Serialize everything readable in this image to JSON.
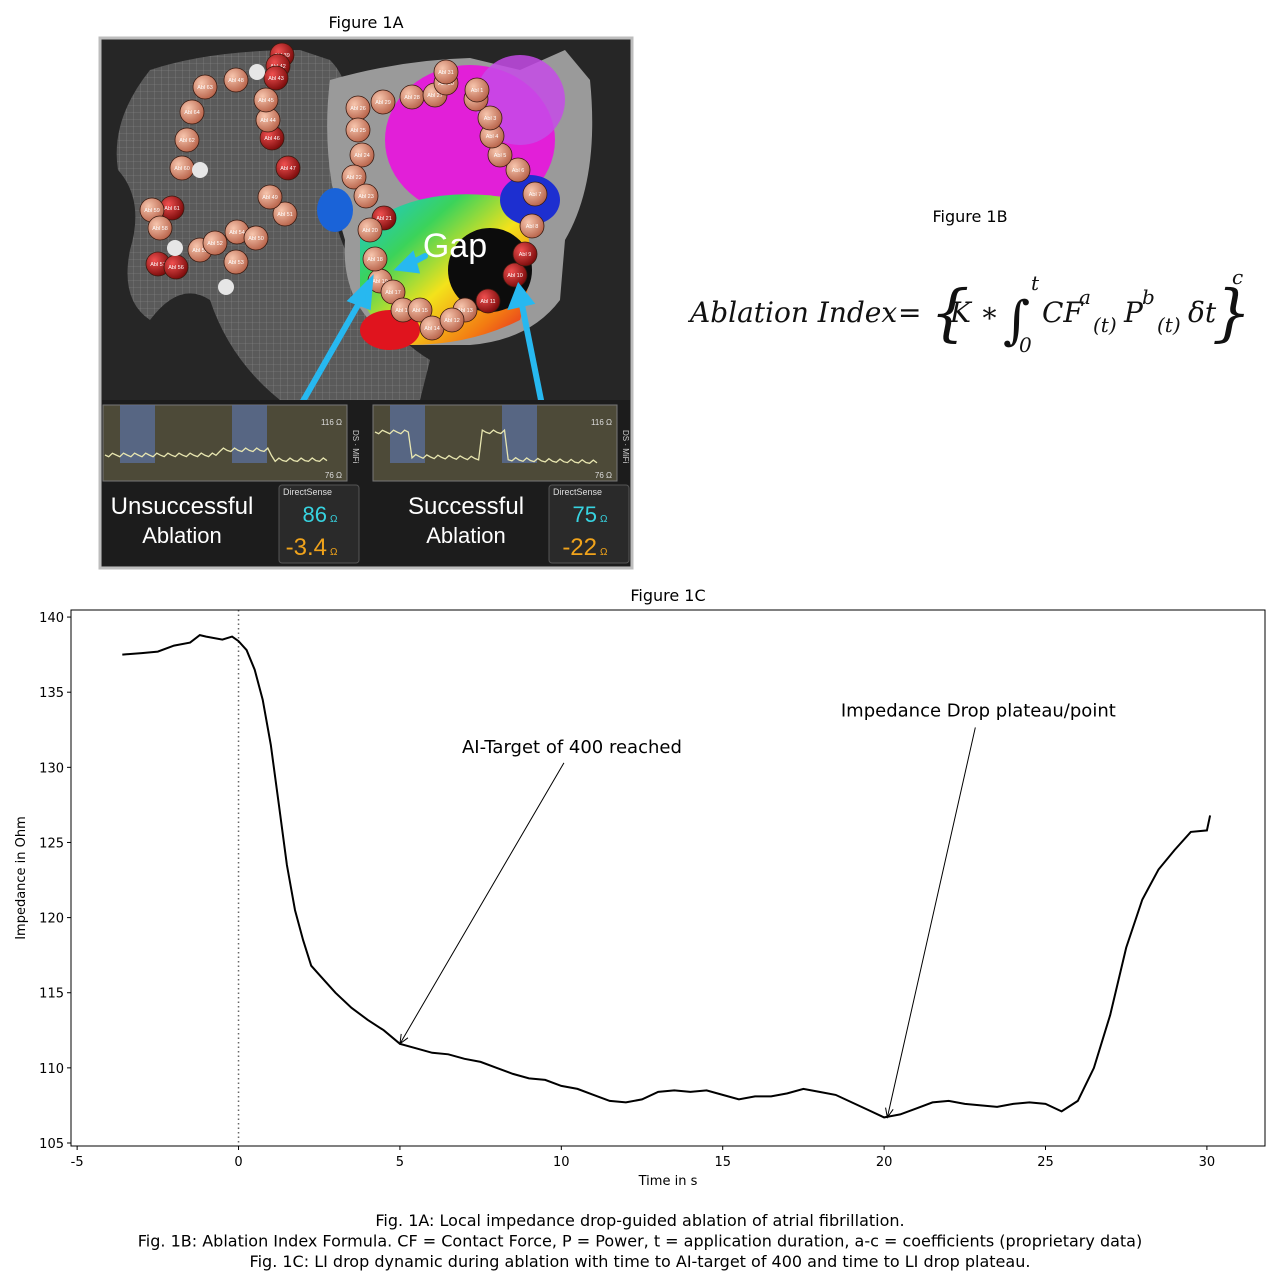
{
  "figure_1a": {
    "title": "Figure 1A",
    "gap_label": "Gap",
    "side_label": "DS · MiFi",
    "sphere_labels": [
      "Abl 39",
      "Abl 42",
      "Abl 43",
      "Abl 48",
      "Abl 63",
      "Abl 64",
      "Abl 62",
      "Abl 60",
      "Abl 61",
      "Abl 59",
      "Abl 58",
      "Abl 57",
      "Abl 56",
      "Abl 55",
      "Abl 54",
      "Abl 53",
      "Abl 52",
      "Abl 50",
      "Abl 51",
      "Abl 49",
      "Abl 47",
      "Abl 46",
      "Abl 44",
      "Abl 45",
      "Abl 29",
      "Abl 28",
      "Abl 27",
      "Abl 26",
      "Abl 25",
      "Abl 24",
      "Abl 22",
      "Abl 23",
      "Abl 21",
      "Abl 20",
      "Abl 19",
      "Abl 18",
      "Abl 17",
      "Abl 16",
      "Abl 15",
      "Abl 14",
      "Abl 13",
      "Abl 12",
      "Abl 11",
      "Abl 10",
      "Abl 9",
      "Abl 8",
      "Abl 7",
      "Abl 6",
      "Abl 5",
      "Abl 4",
      "Abl 3",
      "Abl 2",
      "Abl 1",
      "Abl 30",
      "Abl 31"
    ],
    "panels": [
      {
        "status": [
          "Unsuccessful",
          "Ablation"
        ],
        "brand": "DirectSense",
        "value": "86",
        "value_unit": "Ω",
        "drop": "-3.4",
        "drop_unit": "Ω",
        "scale_top": "116 Ω",
        "scale_bottom": "76 Ω"
      },
      {
        "status": [
          "Successful",
          "Ablation"
        ],
        "brand": "DirectSense",
        "value": "75",
        "value_unit": "Ω",
        "drop": "-22",
        "drop_unit": "Ω",
        "scale_top": "116 Ω",
        "scale_bottom": "76 Ω"
      }
    ]
  },
  "figure_1b": {
    "title": "Figure 1B",
    "formula": {
      "lhs": "Ablation Index",
      "eq": "=",
      "open": "{",
      "k": "K ∗",
      "integral": "∫",
      "upper": "t",
      "lower": "0",
      "cf": "CF",
      "a": "a",
      "sub1": "(t)",
      "p": "P",
      "b": "b",
      "sub2": "(t)",
      "dt": "δt",
      "close": "}",
      "c": "c"
    }
  },
  "chart_data": {
    "type": "line",
    "title": "Figure 1C",
    "x_label": "Time in s",
    "y_label": "Impedance in Ohm",
    "x": [
      -3.6,
      -3,
      -2.5,
      -2,
      -1.5,
      -1.2,
      -1,
      -0.5,
      -0.2,
      0,
      0.25,
      0.5,
      0.75,
      1,
      1.25,
      1.5,
      1.75,
      2,
      2.25,
      2.5,
      3,
      3.5,
      4,
      4.5,
      5,
      5.5,
      6,
      6.5,
      7,
      7.5,
      8,
      8.5,
      9,
      9.5,
      10,
      10.5,
      11,
      11.5,
      12,
      12.5,
      13,
      13.5,
      14,
      14.5,
      15,
      15.5,
      16,
      16.5,
      17,
      17.5,
      18,
      18.5,
      19,
      19.5,
      20,
      20.5,
      21,
      21.5,
      22,
      22.5,
      23,
      23.5,
      24,
      24.5,
      25,
      25.5,
      26,
      26.5,
      27,
      27.5,
      28,
      28.5,
      29,
      29.5,
      30,
      30.1
    ],
    "values": [
      137.5,
      137.6,
      137.7,
      138.1,
      138.3,
      138.8,
      138.7,
      138.5,
      138.7,
      138.4,
      137.8,
      136.5,
      134.5,
      131.5,
      127.5,
      123.5,
      120.5,
      118.5,
      116.8,
      116.2,
      115,
      114,
      113.2,
      112.5,
      111.6,
      111.3,
      111,
      110.9,
      110.6,
      110.4,
      110,
      109.6,
      109.3,
      109.2,
      108.8,
      108.6,
      108.2,
      107.8,
      107.7,
      107.9,
      108.4,
      108.5,
      108.4,
      108.5,
      108.2,
      107.9,
      108.1,
      108.1,
      108.3,
      108.6,
      108.4,
      108.2,
      107.7,
      107.2,
      106.7,
      106.9,
      107.3,
      107.7,
      107.8,
      107.6,
      107.5,
      107.4,
      107.6,
      107.7,
      107.6,
      107.1,
      107.8,
      110,
      113.5,
      118,
      121.2,
      123.2,
      124.5,
      125.7,
      125.8,
      126.8
    ],
    "color": "#000000",
    "xlim": [
      -5.19,
      31.8
    ],
    "ylim": [
      104.8,
      140.47
    ],
    "xticks": [
      -5,
      0,
      5,
      10,
      15,
      20,
      25,
      30
    ],
    "yticks": [
      105,
      110,
      115,
      120,
      125,
      130,
      135,
      140
    ],
    "vline": 0,
    "annotations": [
      {
        "text": "AI-Target of 400 reached",
        "x": 5,
        "y": 111.6
      },
      {
        "text": "Impedance Drop plateau/point",
        "x": 20.1,
        "y": 106.7
      }
    ]
  },
  "caption": [
    "Fig. 1A: Local impedance drop-guided ablation of atrial fibrillation.",
    "Fig. 1B: Ablation Index Formula. CF = Contact Force, P = Power, t = application duration, a-c = coefficients (proprietary data)",
    "Fig. 1C: LI drop dynamic during ablation with time to AI-target of 400 and time to LI drop plateau."
  ]
}
